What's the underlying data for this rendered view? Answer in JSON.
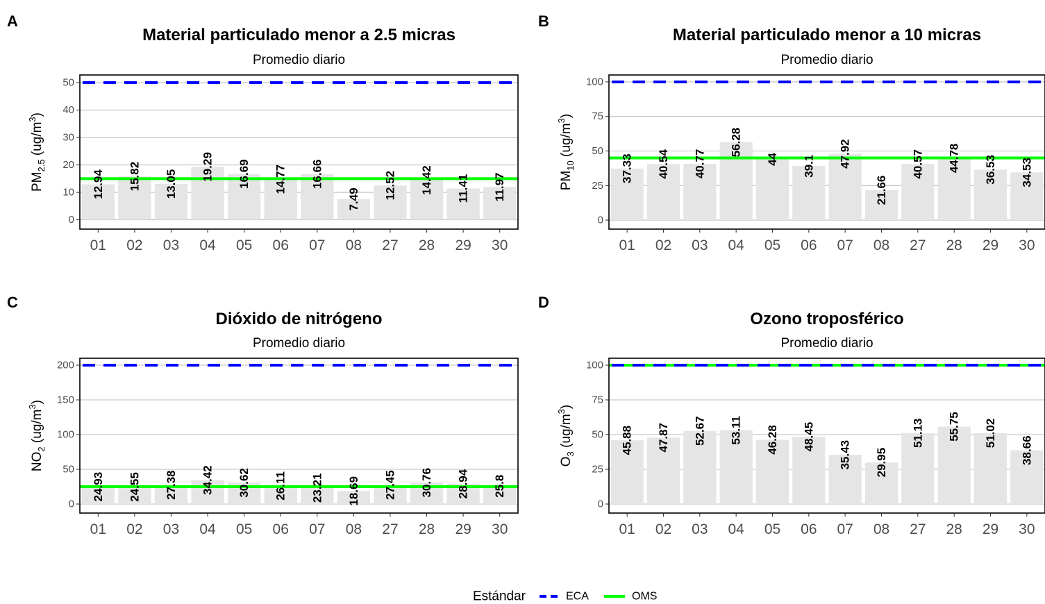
{
  "chart_data": [
    {
      "type": "bar",
      "panel_tag": "A",
      "title": "Material particulado menor a 2.5 micras",
      "subtitle": "Promedio diario",
      "ylabel": {
        "main": "PM",
        "sub": "2.5",
        "unit_pre": " (ug/m",
        "unit_sup": "3",
        "unit_post": ")"
      },
      "categories": [
        "01",
        "02",
        "03",
        "04",
        "05",
        "06",
        "07",
        "08",
        "27",
        "28",
        "29",
        "30"
      ],
      "values": [
        12.94,
        15.82,
        13.05,
        19.29,
        16.69,
        14.77,
        16.66,
        7.49,
        12.52,
        14.42,
        11.41,
        11.97
      ],
      "labels": [
        "12.94",
        "15.82",
        "13.05",
        "19.29",
        "16.69",
        "14.77",
        "16.66",
        "7.49",
        "12.52",
        "14.42",
        "11.41",
        "11.97"
      ],
      "ylim": [
        -3.4,
        52.8
      ],
      "yticks": [
        0,
        10,
        20,
        30,
        40,
        50
      ],
      "ytick_labels": [
        "0",
        "10",
        "20",
        "30",
        "40",
        "50"
      ],
      "eca": 50,
      "oms": 15
    },
    {
      "type": "bar",
      "panel_tag": "B",
      "title": "Material particulado menor a 10 micras",
      "subtitle": "Promedio diario",
      "ylabel": {
        "main": "PM",
        "sub": "10",
        "unit_pre": " (ug/m",
        "unit_sup": "3",
        "unit_post": ")"
      },
      "categories": [
        "01",
        "02",
        "03",
        "04",
        "05",
        "06",
        "07",
        "08",
        "27",
        "28",
        "29",
        "30"
      ],
      "values": [
        37.33,
        40.54,
        40.77,
        56.28,
        44,
        39.1,
        47.92,
        21.66,
        40.57,
        44.78,
        36.53,
        34.53
      ],
      "labels": [
        "37.33",
        "40.54",
        "40.77",
        "56.28",
        "44",
        "39.1",
        "47.92",
        "21.66",
        "40.57",
        "44.78",
        "36.53",
        "34.53"
      ],
      "ylim": [
        -6.5,
        105
      ],
      "yticks": [
        0,
        25,
        50,
        75,
        100
      ],
      "ytick_labels": [
        "0",
        "25",
        "50",
        "75",
        "100"
      ],
      "eca": 100,
      "oms": 45
    },
    {
      "type": "bar",
      "panel_tag": "C",
      "title": "Dióxido de nitrógeno",
      "subtitle": "Promedio diario",
      "ylabel": {
        "main": "NO",
        "sub": "2",
        "unit_pre": " (ug/m",
        "unit_sup": "3",
        "unit_post": ")"
      },
      "categories": [
        "01",
        "02",
        "03",
        "04",
        "05",
        "06",
        "07",
        "08",
        "27",
        "28",
        "29",
        "30"
      ],
      "values": [
        24.93,
        24.55,
        27.38,
        34.42,
        30.62,
        26.11,
        23.21,
        18.69,
        27.45,
        30.76,
        28.94,
        25.8
      ],
      "labels": [
        "24.93",
        "24.55",
        "27.38",
        "34.42",
        "30.62",
        "26.11",
        "23.21",
        "18.69",
        "27.45",
        "30.76",
        "28.94",
        "25.8"
      ],
      "ylim": [
        -13,
        210
      ],
      "yticks": [
        0,
        50,
        100,
        150,
        200
      ],
      "ytick_labels": [
        "0",
        "50",
        "100",
        "150",
        "200"
      ],
      "eca": 200,
      "oms": 25
    },
    {
      "type": "bar",
      "panel_tag": "D",
      "title": "Ozono troposférico",
      "subtitle": "Promedio diario",
      "ylabel": {
        "main": "O",
        "sub": "3",
        "unit_pre": " (ug/m",
        "unit_sup": "3",
        "unit_post": ")"
      },
      "categories": [
        "01",
        "02",
        "03",
        "04",
        "05",
        "06",
        "07",
        "08",
        "27",
        "28",
        "29",
        "30"
      ],
      "values": [
        45.88,
        47.87,
        52.67,
        53.11,
        46.28,
        48.45,
        35.43,
        29.95,
        51.13,
        55.75,
        51.02,
        38.66
      ],
      "labels": [
        "45.88",
        "47.87",
        "52.67",
        "53.11",
        "46.28",
        "48.45",
        "35.43",
        "29.95",
        "51.13",
        "55.75",
        "51.02",
        "38.66"
      ],
      "ylim": [
        -6.5,
        105
      ],
      "yticks": [
        0,
        25,
        50,
        75,
        100
      ],
      "ytick_labels": [
        "0",
        "25",
        "50",
        "75",
        "100"
      ],
      "eca": 100,
      "oms": 100
    }
  ],
  "legend": {
    "title": "Estándar",
    "position": "bottom",
    "items": [
      {
        "name": "ECA",
        "color": "#0000FF",
        "style": "dashed"
      },
      {
        "name": "OMS",
        "color": "#00FF00",
        "style": "solid"
      }
    ]
  },
  "colors": {
    "bar_fill": "#E5E5E5",
    "grid": "#BEBEBE",
    "axis_text": "#4D4D4D"
  }
}
